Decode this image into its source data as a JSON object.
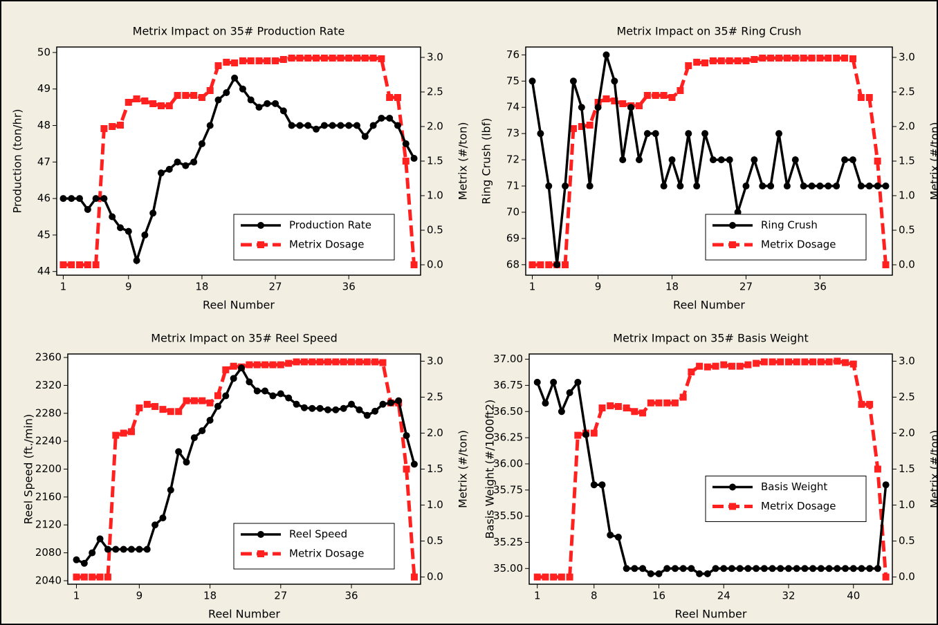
{
  "chart_data": [
    {
      "type": "line",
      "title": "Metrix Impact on 35# Production Rate",
      "xlabel": "Reel Number",
      "ylabel": "Production (ton/hr)",
      "y2label": "Metrix (#/ton)",
      "x": [
        1,
        2,
        3,
        4,
        5,
        6,
        7,
        8,
        9,
        10,
        11,
        12,
        13,
        14,
        15,
        16,
        17,
        18,
        19,
        20,
        21,
        22,
        23,
        24,
        25,
        26,
        27,
        28,
        29,
        30,
        31,
        32,
        33,
        34,
        35,
        36,
        37,
        38,
        39,
        40,
        41,
        42,
        43,
        44
      ],
      "xlim": [
        0.2,
        44.8
      ],
      "xticks": [
        1,
        9,
        18,
        27,
        36
      ],
      "ylim": [
        43.9,
        50.15
      ],
      "yticks": [
        44,
        45,
        46,
        47,
        48,
        49,
        50
      ],
      "y2lim": [
        -0.15,
        3.15
      ],
      "y2ticks": [
        {
          "value": 0,
          "label": "0.0"
        },
        0.5,
        {
          "value": 1,
          "label": "1.0"
        },
        1.5,
        {
          "value": 2,
          "label": "2.0"
        },
        2.5,
        {
          "value": 3,
          "label": "3.0"
        }
      ],
      "legend": "lower right",
      "series": [
        {
          "name": "Production Rate",
          "color": "#000000",
          "marker": "circle",
          "linestyle": "solid",
          "values": [
            46,
            46,
            46,
            45.7,
            46,
            46,
            45.5,
            45.2,
            45.1,
            44.3,
            45,
            45.6,
            46.7,
            46.8,
            47,
            46.9,
            47,
            47.5,
            48,
            48.7,
            48.9,
            49.3,
            49,
            48.7,
            48.5,
            48.6,
            48.6,
            48.4,
            48,
            48,
            48,
            47.9,
            48,
            48,
            48,
            48,
            48,
            47.7,
            48,
            48.2,
            48.2,
            48,
            47.5,
            47.1
          ]
        },
        {
          "name": "Metrix Dosage",
          "color": "#ff2020",
          "marker": "square",
          "linestyle": "dashed",
          "axis": "y2",
          "values": [
            0,
            0,
            0,
            0,
            0,
            1.97,
            2,
            2.02,
            2.35,
            2.4,
            2.37,
            2.33,
            2.3,
            2.3,
            2.45,
            2.45,
            2.45,
            2.42,
            2.52,
            2.88,
            2.93,
            2.92,
            2.95,
            2.95,
            2.95,
            2.95,
            2.95,
            2.97,
            2.99,
            2.99,
            2.99,
            2.99,
            2.99,
            2.99,
            2.99,
            2.99,
            2.99,
            2.99,
            2.99,
            2.98,
            2.42,
            2.42,
            1.5,
            0
          ]
        }
      ]
    },
    {
      "type": "line",
      "title": "Metrix Impact on 35# Ring Crush",
      "xlabel": "Reel Number",
      "ylabel": "Ring Crush (lbf)",
      "y2label": "Metrix (#/ton)",
      "x": [
        1,
        2,
        3,
        4,
        5,
        6,
        7,
        8,
        9,
        10,
        11,
        12,
        13,
        14,
        15,
        16,
        17,
        18,
        19,
        20,
        21,
        22,
        23,
        24,
        25,
        26,
        27,
        28,
        29,
        30,
        31,
        32,
        33,
        34,
        35,
        36,
        37,
        38,
        39,
        40,
        41,
        42,
        43,
        44
      ],
      "xlim": [
        0.2,
        44.8
      ],
      "xticks": [
        1,
        9,
        18,
        27,
        36
      ],
      "ylim": [
        67.6,
        76.3
      ],
      "yticks": [
        68,
        69,
        70,
        71,
        72,
        73,
        74,
        75,
        76
      ],
      "y2lim": [
        -0.15,
        3.15
      ],
      "y2ticks": [
        {
          "value": 0,
          "label": "0.0"
        },
        0.5,
        {
          "value": 1,
          "label": "1.0"
        },
        1.5,
        {
          "value": 2,
          "label": "2.0"
        },
        2.5,
        {
          "value": 3,
          "label": "3.0"
        }
      ],
      "legend": "lower right",
      "series": [
        {
          "name": "Ring Crush",
          "color": "#000000",
          "marker": "circle",
          "linestyle": "solid",
          "values": [
            75,
            73,
            71,
            68,
            71,
            75,
            74,
            71,
            74,
            76,
            75,
            72,
            74,
            72,
            73,
            73,
            71,
            72,
            71,
            73,
            71,
            73,
            72,
            72,
            72,
            70,
            71,
            72,
            71,
            71,
            73,
            71,
            72,
            71,
            71,
            71,
            71,
            71,
            72,
            72,
            71,
            71,
            71,
            71
          ]
        },
        {
          "name": "Metrix Dosage",
          "color": "#ff2020",
          "marker": "square",
          "linestyle": "dashed",
          "axis": "y2",
          "values": [
            0,
            0,
            0,
            0,
            0,
            1.97,
            2,
            2.02,
            2.35,
            2.4,
            2.37,
            2.33,
            2.3,
            2.3,
            2.45,
            2.45,
            2.45,
            2.42,
            2.52,
            2.88,
            2.93,
            2.92,
            2.95,
            2.95,
            2.95,
            2.95,
            2.95,
            2.97,
            2.99,
            2.99,
            2.99,
            2.99,
            2.99,
            2.99,
            2.99,
            2.99,
            2.99,
            2.99,
            2.99,
            2.98,
            2.42,
            2.42,
            1.5,
            0
          ]
        }
      ]
    },
    {
      "type": "line",
      "title": "Metrix Impact on 35# Reel Speed",
      "xlabel": "Reel Number",
      "ylabel": "Reel Speed (ft./min)",
      "y2label": "Metrix (#/ton)",
      "x": [
        1,
        2,
        3,
        4,
        5,
        6,
        7,
        8,
        9,
        10,
        11,
        12,
        13,
        14,
        15,
        16,
        17,
        18,
        19,
        20,
        21,
        22,
        23,
        24,
        25,
        26,
        27,
        28,
        29,
        30,
        31,
        32,
        33,
        34,
        35,
        36,
        37,
        38,
        39,
        40,
        41,
        42,
        43,
        44
      ],
      "xlim": [
        -0.1,
        44.8
      ],
      "xticks": [
        1,
        9,
        18,
        27,
        36
      ],
      "ylim": [
        2035,
        2365
      ],
      "yticks": [
        2040,
        2080,
        2120,
        2160,
        2200,
        2240,
        2280,
        2320,
        2360
      ],
      "y2lim": [
        -0.1,
        3.1
      ],
      "y2ticks": [
        {
          "value": 0,
          "label": "0.0"
        },
        0.5,
        {
          "value": 1,
          "label": "1.0"
        },
        1.5,
        {
          "value": 2,
          "label": "2.0"
        },
        2.5,
        {
          "value": 3,
          "label": "3.0"
        }
      ],
      "legend": "lower right",
      "series": [
        {
          "name": "Reel Speed",
          "color": "#000000",
          "marker": "circle",
          "linestyle": "solid",
          "values": [
            2070,
            2065,
            2080,
            2100,
            2085,
            2085,
            2085,
            2085,
            2085,
            2085,
            2120,
            2130,
            2170,
            2225,
            2210,
            2245,
            2255,
            2270,
            2290,
            2305,
            2330,
            2345,
            2325,
            2312,
            2312,
            2305,
            2308,
            2302,
            2293,
            2288,
            2287,
            2287,
            2285,
            2285,
            2287,
            2293,
            2285,
            2277,
            2283,
            2293,
            2295,
            2298,
            2248,
            2207
          ]
        },
        {
          "name": "Metrix Dosage",
          "color": "#ff2020",
          "marker": "square",
          "linestyle": "dashed",
          "axis": "y2",
          "values": [
            0,
            0,
            0,
            0,
            0,
            1.97,
            2,
            2.02,
            2.35,
            2.4,
            2.37,
            2.33,
            2.3,
            2.3,
            2.45,
            2.45,
            2.45,
            2.42,
            2.52,
            2.88,
            2.93,
            2.92,
            2.95,
            2.95,
            2.95,
            2.95,
            2.95,
            2.97,
            2.99,
            2.99,
            2.99,
            2.99,
            2.99,
            2.99,
            2.99,
            2.99,
            2.99,
            2.99,
            2.99,
            2.98,
            2.42,
            2.42,
            1.5,
            0
          ]
        }
      ]
    },
    {
      "type": "line",
      "title": "Metrix Impact on 35# Basis Weight",
      "xlabel": "Reel Number",
      "ylabel": "Basis Weight (#/1000ft2)",
      "y2label": "Metrix (#/ton)",
      "x": [
        1,
        2,
        3,
        4,
        5,
        6,
        7,
        8,
        9,
        10,
        11,
        12,
        13,
        14,
        15,
        16,
        17,
        18,
        19,
        20,
        21,
        22,
        23,
        24,
        25,
        26,
        27,
        28,
        29,
        30,
        31,
        32,
        33,
        34,
        35,
        36,
        37,
        38,
        39,
        40,
        41,
        42,
        43,
        44
      ],
      "xlim": [
        0.0,
        44.8
      ],
      "xticks": [
        1,
        8,
        16,
        24,
        32,
        40
      ],
      "ylim": [
        34.85,
        37.05
      ],
      "yticks": [
        {
          "value": 35,
          "label": "35.00"
        },
        35.25,
        {
          "value": 35.5,
          "label": "35.50"
        },
        35.75,
        {
          "value": 36,
          "label": "36.00"
        },
        36.25,
        {
          "value": 36.5,
          "label": "36.50"
        },
        36.75,
        {
          "value": 37,
          "label": "37.00"
        }
      ],
      "y2lim": [
        -0.1,
        3.1
      ],
      "y2ticks": [
        {
          "value": 0,
          "label": "0.0"
        },
        0.5,
        {
          "value": 1,
          "label": "1.0"
        },
        1.5,
        {
          "value": 2,
          "label": "2.0"
        },
        2.5,
        {
          "value": 3,
          "label": "3.0"
        }
      ],
      "legend": "center right",
      "series": [
        {
          "name": "Basis Weight",
          "color": "#000000",
          "marker": "circle",
          "linestyle": "solid",
          "values": [
            36.78,
            36.58,
            36.78,
            36.5,
            36.68,
            36.78,
            36.28,
            35.8,
            35.8,
            35.32,
            35.3,
            35,
            35,
            35,
            34.95,
            34.95,
            35,
            35,
            35,
            35,
            34.95,
            34.95,
            35,
            35,
            35,
            35,
            35,
            35,
            35,
            35,
            35,
            35,
            35,
            35,
            35,
            35,
            35,
            35,
            35,
            35,
            35,
            35,
            35,
            35.8
          ]
        },
        {
          "name": "Metrix Dosage",
          "color": "#ff2020",
          "marker": "square",
          "linestyle": "dashed",
          "axis": "y2",
          "values": [
            0,
            0,
            0,
            0,
            0,
            1.97,
            2,
            2,
            2.35,
            2.38,
            2.37,
            2.35,
            2.3,
            2.28,
            2.42,
            2.42,
            2.42,
            2.42,
            2.5,
            2.85,
            2.93,
            2.92,
            2.93,
            2.95,
            2.93,
            2.93,
            2.95,
            2.97,
            2.99,
            2.99,
            2.99,
            2.99,
            2.99,
            2.99,
            2.99,
            2.99,
            2.99,
            3,
            2.98,
            2.96,
            2.4,
            2.4,
            1.5,
            0
          ]
        }
      ]
    }
  ]
}
